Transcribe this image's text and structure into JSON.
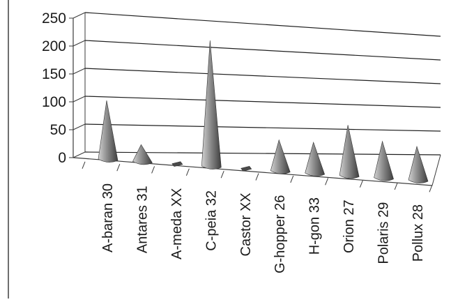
{
  "chart_data": {
    "type": "bar",
    "style": "3d-cone",
    "categories": [
      "A-baran  30",
      "Antares  31",
      "A-meda   XX",
      "C-peia  32",
      "Castor   XX",
      "G-hopper 26",
      "H-gon   33",
      "Orion   27",
      "Polaris   29",
      "Pollux   28"
    ],
    "values": [
      105,
      30,
      0,
      225,
      0,
      55,
      55,
      90,
      65,
      60
    ],
    "yticks": [
      "0",
      "50",
      "100",
      "150",
      "200",
      "250"
    ],
    "ylim": [
      0,
      250
    ],
    "grid": true,
    "legend": "none",
    "colors": {
      "cone_light": "#bdbdbd",
      "cone_mid": "#8a8a8a",
      "cone_dark": "#4a4a4a",
      "gridline": "#1f1f1f",
      "axis": "#3a3a3a"
    }
  }
}
